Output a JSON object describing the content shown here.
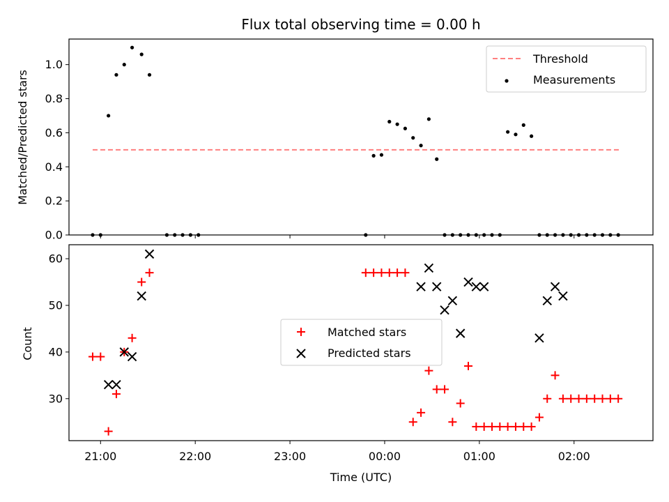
{
  "chart_data": [
    {
      "type": "scatter",
      "title": "Flux total observing time = 0.00 h",
      "xlabel": "",
      "ylabel": "Matched/Predicted stars",
      "x_unit": "UTC time (date boundary at 00:00)",
      "xlim": [
        "20:40",
        "02:50"
      ],
      "ylim": [
        0,
        1.15
      ],
      "yticks": [
        "0.0",
        "0.2",
        "0.4",
        "0.6",
        "0.8",
        "1.0"
      ],
      "show_xtick_labels": false,
      "legend_position": "upper right",
      "threshold": {
        "name": "Threshold",
        "value": 0.5,
        "x_range": [
          "20:55",
          "02:30"
        ],
        "color": "#ff7f7f",
        "style": "dashed"
      },
      "series": [
        {
          "name": "Measurements",
          "marker": "dot",
          "color": "#000000",
          "x": [
            "20:55",
            "21:00",
            "21:05",
            "21:10",
            "21:15",
            "21:20",
            "21:26",
            "21:31",
            "21:42",
            "21:47",
            "21:52",
            "21:57",
            "22:02",
            "23:48",
            "23:53",
            "23:58",
            "00:03",
            "00:08",
            "00:13",
            "00:18",
            "00:23",
            "00:28",
            "00:33",
            "00:38",
            "00:43",
            "00:48",
            "00:53",
            "00:58",
            "01:03",
            "01:08",
            "01:13",
            "01:18",
            "01:23",
            "01:28",
            "01:33",
            "01:38",
            "01:43",
            "01:48",
            "01:53",
            "01:58",
            "02:03",
            "02:08",
            "02:13",
            "02:18",
            "02:23",
            "02:28"
          ],
          "y": [
            0,
            0,
            0.7,
            0.94,
            1.0,
            1.1,
            1.06,
            0.94,
            0,
            0,
            0,
            0,
            0,
            0,
            0.465,
            0.47,
            0.665,
            0.65,
            0.625,
            0.57,
            0.525,
            0.68,
            0.445,
            0,
            0,
            0,
            0,
            0,
            0,
            0,
            0,
            0.605,
            0.59,
            0.645,
            0.58,
            0,
            0,
            0,
            0,
            0,
            0,
            0,
            0,
            0,
            0,
            0
          ]
        }
      ]
    },
    {
      "type": "scatter",
      "title": "",
      "xlabel": "Time (UTC)",
      "ylabel": "Count",
      "x_unit": "UTC time (date boundary at 00:00)",
      "xlim": [
        "20:40",
        "02:50"
      ],
      "ylim": [
        21,
        63
      ],
      "yticks": [
        "30",
        "40",
        "50",
        "60"
      ],
      "xticks": [
        "21:00",
        "22:00",
        "23:00",
        "00:00",
        "01:00",
        "02:00"
      ],
      "legend_position": "center",
      "series": [
        {
          "name": "Matched stars",
          "marker": "plus",
          "color": "#ff0000",
          "x": [
            "20:55",
            "21:00",
            "21:05",
            "21:10",
            "21:15",
            "21:20",
            "21:26",
            "21:31",
            "23:48",
            "23:53",
            "23:58",
            "00:03",
            "00:08",
            "00:13",
            "00:18",
            "00:23",
            "00:28",
            "00:33",
            "00:38",
            "00:43",
            "00:48",
            "00:53",
            "00:58",
            "01:03",
            "01:08",
            "01:13",
            "01:18",
            "01:23",
            "01:28",
            "01:33",
            "01:38",
            "01:43",
            "01:48",
            "01:53",
            "01:58",
            "02:03",
            "02:08",
            "02:13",
            "02:18",
            "02:23",
            "02:28"
          ],
          "y": [
            39,
            39,
            23,
            31,
            40,
            43,
            55,
            57,
            57,
            57,
            57,
            57,
            57,
            57,
            25,
            27,
            36,
            32,
            32,
            25,
            29,
            37,
            24,
            24,
            24,
            24,
            24,
            24,
            24,
            24,
            26,
            30,
            35,
            30,
            30,
            30,
            30,
            30,
            30,
            30,
            30
          ]
        },
        {
          "name": "Predicted stars",
          "marker": "x",
          "color": "#000000",
          "x": [
            "21:05",
            "21:10",
            "21:15",
            "21:20",
            "21:26",
            "21:31",
            "00:23",
            "00:28",
            "00:33",
            "00:38",
            "00:43",
            "00:48",
            "00:53",
            "00:58",
            "01:03",
            "01:38",
            "01:43",
            "01:48",
            "01:53"
          ],
          "y": [
            33,
            33,
            40,
            39,
            52,
            61,
            54,
            58,
            54,
            49,
            51,
            44,
            55,
            54,
            54,
            43,
            51,
            54,
            52
          ]
        }
      ]
    }
  ],
  "colors": {
    "threshold": "#ff7f7f",
    "matched": "#ff0000",
    "predicted": "#000000",
    "measurements": "#000000"
  }
}
